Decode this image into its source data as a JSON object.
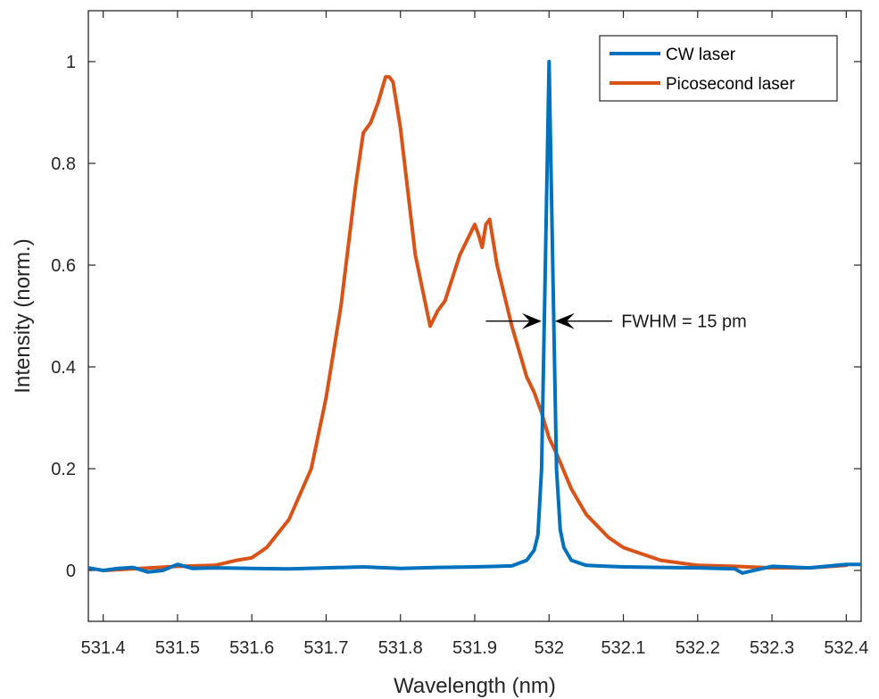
{
  "chart_data": {
    "type": "line",
    "xlabel": "Wavelength (nm)",
    "ylabel": "Intensity (norm.)",
    "xlim": [
      531.38,
      532.42
    ],
    "ylim": [
      -0.1,
      1.1
    ],
    "xticks": [
      531.4,
      531.5,
      531.6,
      531.7,
      531.8,
      531.9,
      532.0,
      532.1,
      532.2,
      532.3,
      532.4
    ],
    "xtick_labels": [
      "531.4",
      "531.5",
      "531.6",
      "531.7",
      "531.8",
      "531.9",
      "532",
      "532.1",
      "532.2",
      "532.3",
      "532.4"
    ],
    "yticks": [
      0,
      0.2,
      0.4,
      0.6,
      0.8,
      1.0
    ],
    "ytick_labels": [
      "0",
      "0.2",
      "0.4",
      "0.6",
      "0.8",
      "1"
    ],
    "grid": false,
    "legend_position": "top-right",
    "colors": {
      "cw": "#0072BD",
      "pico": "#D95319",
      "annotation": "#000000"
    },
    "series": [
      {
        "name": "CW laser",
        "x": [
          531.38,
          531.4,
          531.42,
          531.44,
          531.46,
          531.48,
          531.5,
          531.52,
          531.55,
          531.6,
          531.65,
          531.7,
          531.75,
          531.8,
          531.85,
          531.9,
          531.93,
          531.95,
          531.97,
          531.98,
          531.985,
          531.99,
          531.995,
          532.0,
          532.005,
          532.01,
          532.015,
          532.02,
          532.03,
          532.05,
          532.08,
          532.1,
          532.15,
          532.2,
          532.25,
          532.26,
          532.3,
          532.35,
          532.4,
          532.42
        ],
        "y": [
          0.005,
          0.0,
          0.004,
          0.006,
          -0.003,
          0.0,
          0.012,
          0.004,
          0.005,
          0.004,
          0.003,
          0.005,
          0.007,
          0.004,
          0.006,
          0.007,
          0.008,
          0.009,
          0.02,
          0.04,
          0.07,
          0.2,
          0.6,
          1.0,
          0.6,
          0.2,
          0.08,
          0.045,
          0.02,
          0.01,
          0.008,
          0.007,
          0.006,
          0.005,
          0.003,
          -0.005,
          0.008,
          0.005,
          0.012,
          0.012
        ]
      },
      {
        "name": "Picosecond laser",
        "x": [
          531.4,
          531.45,
          531.5,
          531.55,
          531.58,
          531.6,
          531.62,
          531.65,
          531.68,
          531.7,
          531.72,
          531.74,
          531.75,
          531.76,
          531.77,
          531.78,
          531.785,
          531.79,
          531.8,
          531.82,
          531.84,
          531.85,
          531.86,
          531.88,
          531.9,
          531.905,
          531.91,
          531.915,
          531.92,
          531.93,
          531.95,
          531.97,
          531.98,
          531.99,
          532.0,
          532.01,
          532.03,
          532.05,
          532.08,
          532.1,
          532.15,
          532.2,
          532.25,
          532.3,
          532.35,
          532.4
        ],
        "y": [
          0.0,
          0.004,
          0.008,
          0.01,
          0.02,
          0.025,
          0.045,
          0.1,
          0.2,
          0.34,
          0.52,
          0.76,
          0.86,
          0.88,
          0.92,
          0.97,
          0.97,
          0.96,
          0.87,
          0.62,
          0.48,
          0.51,
          0.53,
          0.62,
          0.68,
          0.66,
          0.635,
          0.68,
          0.69,
          0.6,
          0.48,
          0.38,
          0.35,
          0.31,
          0.26,
          0.23,
          0.16,
          0.11,
          0.065,
          0.045,
          0.02,
          0.01,
          0.008,
          0.005,
          0.005,
          0.01
        ]
      }
    ],
    "annotation": {
      "text": "FWHM = 15 pm",
      "arrow1": {
        "from": [
          531.915,
          0.49
        ],
        "to": [
          531.99,
          0.49
        ]
      },
      "arrow2": {
        "from": [
          532.085,
          0.49
        ],
        "to": [
          532.008,
          0.49
        ]
      },
      "text_at": [
        532.09,
        0.49
      ]
    }
  }
}
